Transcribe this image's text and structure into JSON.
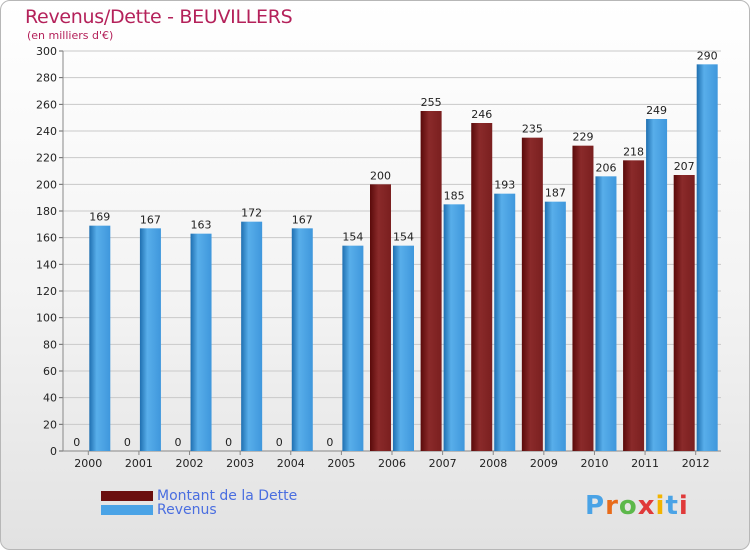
{
  "header": {
    "title": "Revenus/Dette - BEUVILLERS",
    "subtitle": "(en milliers d'€)"
  },
  "chart_data": {
    "type": "bar",
    "title": "Revenus/Dette - BEUVILLERS",
    "subtitle": "(en milliers d'€)",
    "categories": [
      "2000",
      "2001",
      "2002",
      "2003",
      "2004",
      "2005",
      "2006",
      "2007",
      "2008",
      "2009",
      "2010",
      "2011",
      "2012"
    ],
    "series": [
      {
        "name": "Montant de la Dette",
        "color": "#7a1f1f",
        "values": [
          0,
          0,
          0,
          0,
          0,
          0,
          200,
          255,
          246,
          235,
          229,
          218,
          207
        ]
      },
      {
        "name": "Revenus",
        "color": "#4aa3e6",
        "values": [
          169,
          167,
          163,
          172,
          167,
          154,
          154,
          185,
          193,
          187,
          206,
          249,
          290
        ]
      }
    ],
    "ylim": [
      0,
      300
    ],
    "yticks": [
      0,
      20,
      40,
      60,
      80,
      100,
      120,
      140,
      160,
      180,
      200,
      220,
      240,
      260,
      280,
      300
    ],
    "grid": true,
    "legend_position": "bottom-left"
  },
  "legend": {
    "items": [
      {
        "label": "Montant de la Dette",
        "color": "#6b0f0f"
      },
      {
        "label": "Revenus",
        "color": "#4aa3e6"
      }
    ]
  },
  "logo": {
    "text": "Proxiti"
  }
}
